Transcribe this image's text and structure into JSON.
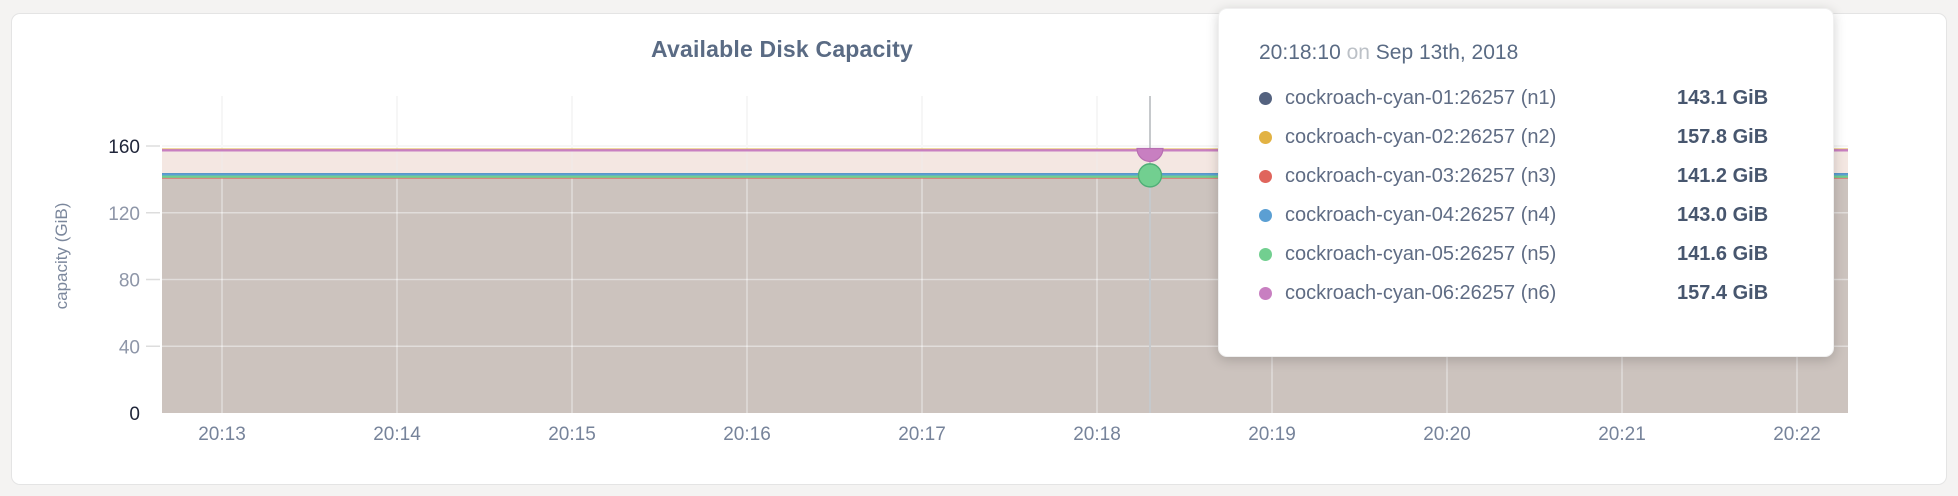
{
  "chart_data": {
    "type": "line",
    "title": "Available Disk Capacity",
    "ylabel": "capacity (GiB)",
    "xlabel": "",
    "x_ticks": [
      "20:13",
      "20:14",
      "20:15",
      "20:16",
      "20:17",
      "20:18",
      "20:19",
      "20:20",
      "20:21",
      "20:22"
    ],
    "y_ticks": [
      0,
      40,
      80,
      120,
      160
    ],
    "ylim": [
      0,
      160
    ],
    "grid": true,
    "legend_position": "tooltip",
    "area_fill": true,
    "series": [
      {
        "name": "cockroach-cyan-01:26257 (n1)",
        "node": "n1",
        "value_gib": 143.1,
        "color": "#54627f"
      },
      {
        "name": "cockroach-cyan-02:26257 (n2)",
        "node": "n2",
        "value_gib": 157.8,
        "color": "#e2b243"
      },
      {
        "name": "cockroach-cyan-03:26257 (n3)",
        "node": "n3",
        "value_gib": 141.2,
        "color": "#e0655c"
      },
      {
        "name": "cockroach-cyan-04:26257 (n4)",
        "node": "n4",
        "value_gib": 143.0,
        "color": "#5b9fd3"
      },
      {
        "name": "cockroach-cyan-05:26257 (n5)",
        "node": "n5",
        "value_gib": 141.6,
        "color": "#72cf90"
      },
      {
        "name": "cockroach-cyan-06:26257 (n6)",
        "node": "n6",
        "value_gib": 157.4,
        "color": "#c87fc1"
      }
    ],
    "hover": {
      "time": "20:18:10",
      "date": "Sep 13th, 2018",
      "marker_series": [
        "n6",
        "n5"
      ]
    }
  },
  "tooltip": {
    "time": "20:18:10",
    "separator": "on",
    "date": "Sep 13th, 2018",
    "rows": [
      {
        "name": "cockroach-cyan-01:26257 (n1)",
        "value": "143.1 GiB"
      },
      {
        "name": "cockroach-cyan-02:26257 (n2)",
        "value": "157.8 GiB"
      },
      {
        "name": "cockroach-cyan-03:26257 (n3)",
        "value": "141.2 GiB"
      },
      {
        "name": "cockroach-cyan-04:26257 (n4)",
        "value": "143.0 GiB"
      },
      {
        "name": "cockroach-cyan-05:26257 (n5)",
        "value": "141.6 GiB"
      },
      {
        "name": "cockroach-cyan-06:26257 (n6)",
        "value": "157.4 GiB"
      }
    ]
  }
}
